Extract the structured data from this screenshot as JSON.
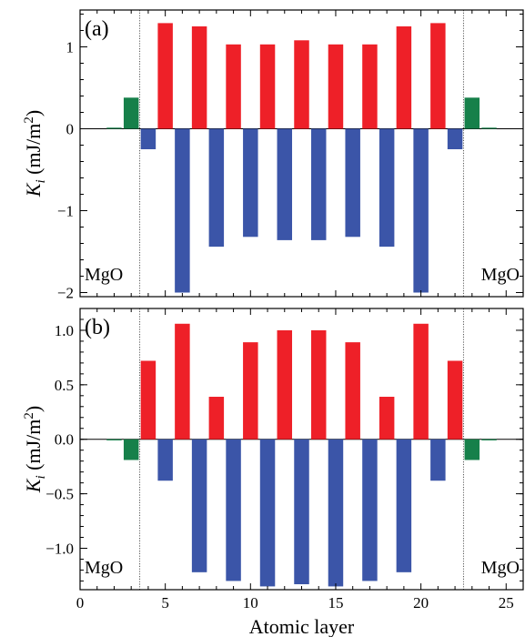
{
  "colors": {
    "positive": "#ee2028",
    "negative": "#3b55a8",
    "mgo": "#16804a"
  },
  "chart_data": [
    {
      "type": "bar",
      "panel_label": "(a)",
      "x_range": [
        0,
        26
      ],
      "ylim": [
        -2.05,
        1.45
      ],
      "yticks": [
        -2,
        -1,
        0,
        1
      ],
      "ytick_labels": [
        "−2",
        "−1",
        "0",
        "1"
      ],
      "xticks": [
        0,
        5,
        10,
        15,
        20,
        25
      ],
      "ylabel_main": "K",
      "ylabel_sub": "i",
      "ylabel_unit": " (mJ/m",
      "ylabel_exp": "2",
      "ylabel_close": ")",
      "boundaries": [
        3.5,
        22.5
      ],
      "region_labels": [
        "MgO",
        "MgO"
      ],
      "mgo_bars": [
        {
          "x": 2,
          "value": 0.01
        },
        {
          "x": 3,
          "value": 0.38
        },
        {
          "x": 23,
          "value": 0.38
        },
        {
          "x": 24,
          "value": 0.01
        }
      ],
      "positive_bars": [
        {
          "x": 5,
          "value": 1.29
        },
        {
          "x": 7,
          "value": 1.25
        },
        {
          "x": 9,
          "value": 1.03
        },
        {
          "x": 11,
          "value": 1.03
        },
        {
          "x": 13,
          "value": 1.08
        },
        {
          "x": 15,
          "value": 1.03
        },
        {
          "x": 17,
          "value": 1.03
        },
        {
          "x": 19,
          "value": 1.25
        },
        {
          "x": 21,
          "value": 1.29
        }
      ],
      "negative_bars": [
        {
          "x": 4,
          "value": -0.25
        },
        {
          "x": 6,
          "value": -2.0
        },
        {
          "x": 8,
          "value": -1.44
        },
        {
          "x": 10,
          "value": -1.32
        },
        {
          "x": 12,
          "value": -1.36
        },
        {
          "x": 14,
          "value": -1.36
        },
        {
          "x": 16,
          "value": -1.32
        },
        {
          "x": 18,
          "value": -1.44
        },
        {
          "x": 20,
          "value": -2.0
        },
        {
          "x": 22,
          "value": -0.25
        }
      ]
    },
    {
      "type": "bar",
      "panel_label": "(b)",
      "x_range": [
        0,
        26
      ],
      "ylim": [
        -1.38,
        1.2
      ],
      "yticks": [
        -1.0,
        -0.5,
        0.0,
        0.5,
        1.0
      ],
      "ytick_labels": [
        "−1.0",
        "−0.5",
        "0.0",
        "0.5",
        "1.0"
      ],
      "xticks": [
        0,
        5,
        10,
        15,
        20,
        25
      ],
      "xtick_labels": [
        "0",
        "5",
        "10",
        "15",
        "20",
        "25"
      ],
      "xlabel": "Atomic layer",
      "ylabel_main": "K",
      "ylabel_sub": "i",
      "ylabel_unit": " (mJ/m",
      "ylabel_exp": "2",
      "ylabel_close": ")",
      "boundaries": [
        3.5,
        22.5
      ],
      "region_labels": [
        "MgO",
        "MgO"
      ],
      "mgo_bars": [
        {
          "x": 2,
          "value": -0.01
        },
        {
          "x": 3,
          "value": -0.19
        },
        {
          "x": 23,
          "value": -0.19
        },
        {
          "x": 24,
          "value": -0.01
        }
      ],
      "positive_bars": [
        {
          "x": 4,
          "value": 0.72
        },
        {
          "x": 6,
          "value": 1.06
        },
        {
          "x": 8,
          "value": 0.39
        },
        {
          "x": 10,
          "value": 0.89
        },
        {
          "x": 12,
          "value": 1.0
        },
        {
          "x": 14,
          "value": 1.0
        },
        {
          "x": 16,
          "value": 0.89
        },
        {
          "x": 18,
          "value": 0.39
        },
        {
          "x": 20,
          "value": 1.06
        },
        {
          "x": 22,
          "value": 0.72
        }
      ],
      "negative_bars": [
        {
          "x": 5,
          "value": -0.38
        },
        {
          "x": 7,
          "value": -1.22
        },
        {
          "x": 9,
          "value": -1.3
        },
        {
          "x": 11,
          "value": -1.35
        },
        {
          "x": 13,
          "value": -1.33
        },
        {
          "x": 15,
          "value": -1.35
        },
        {
          "x": 17,
          "value": -1.3
        },
        {
          "x": 19,
          "value": -1.22
        },
        {
          "x": 21,
          "value": -0.38
        }
      ]
    }
  ]
}
